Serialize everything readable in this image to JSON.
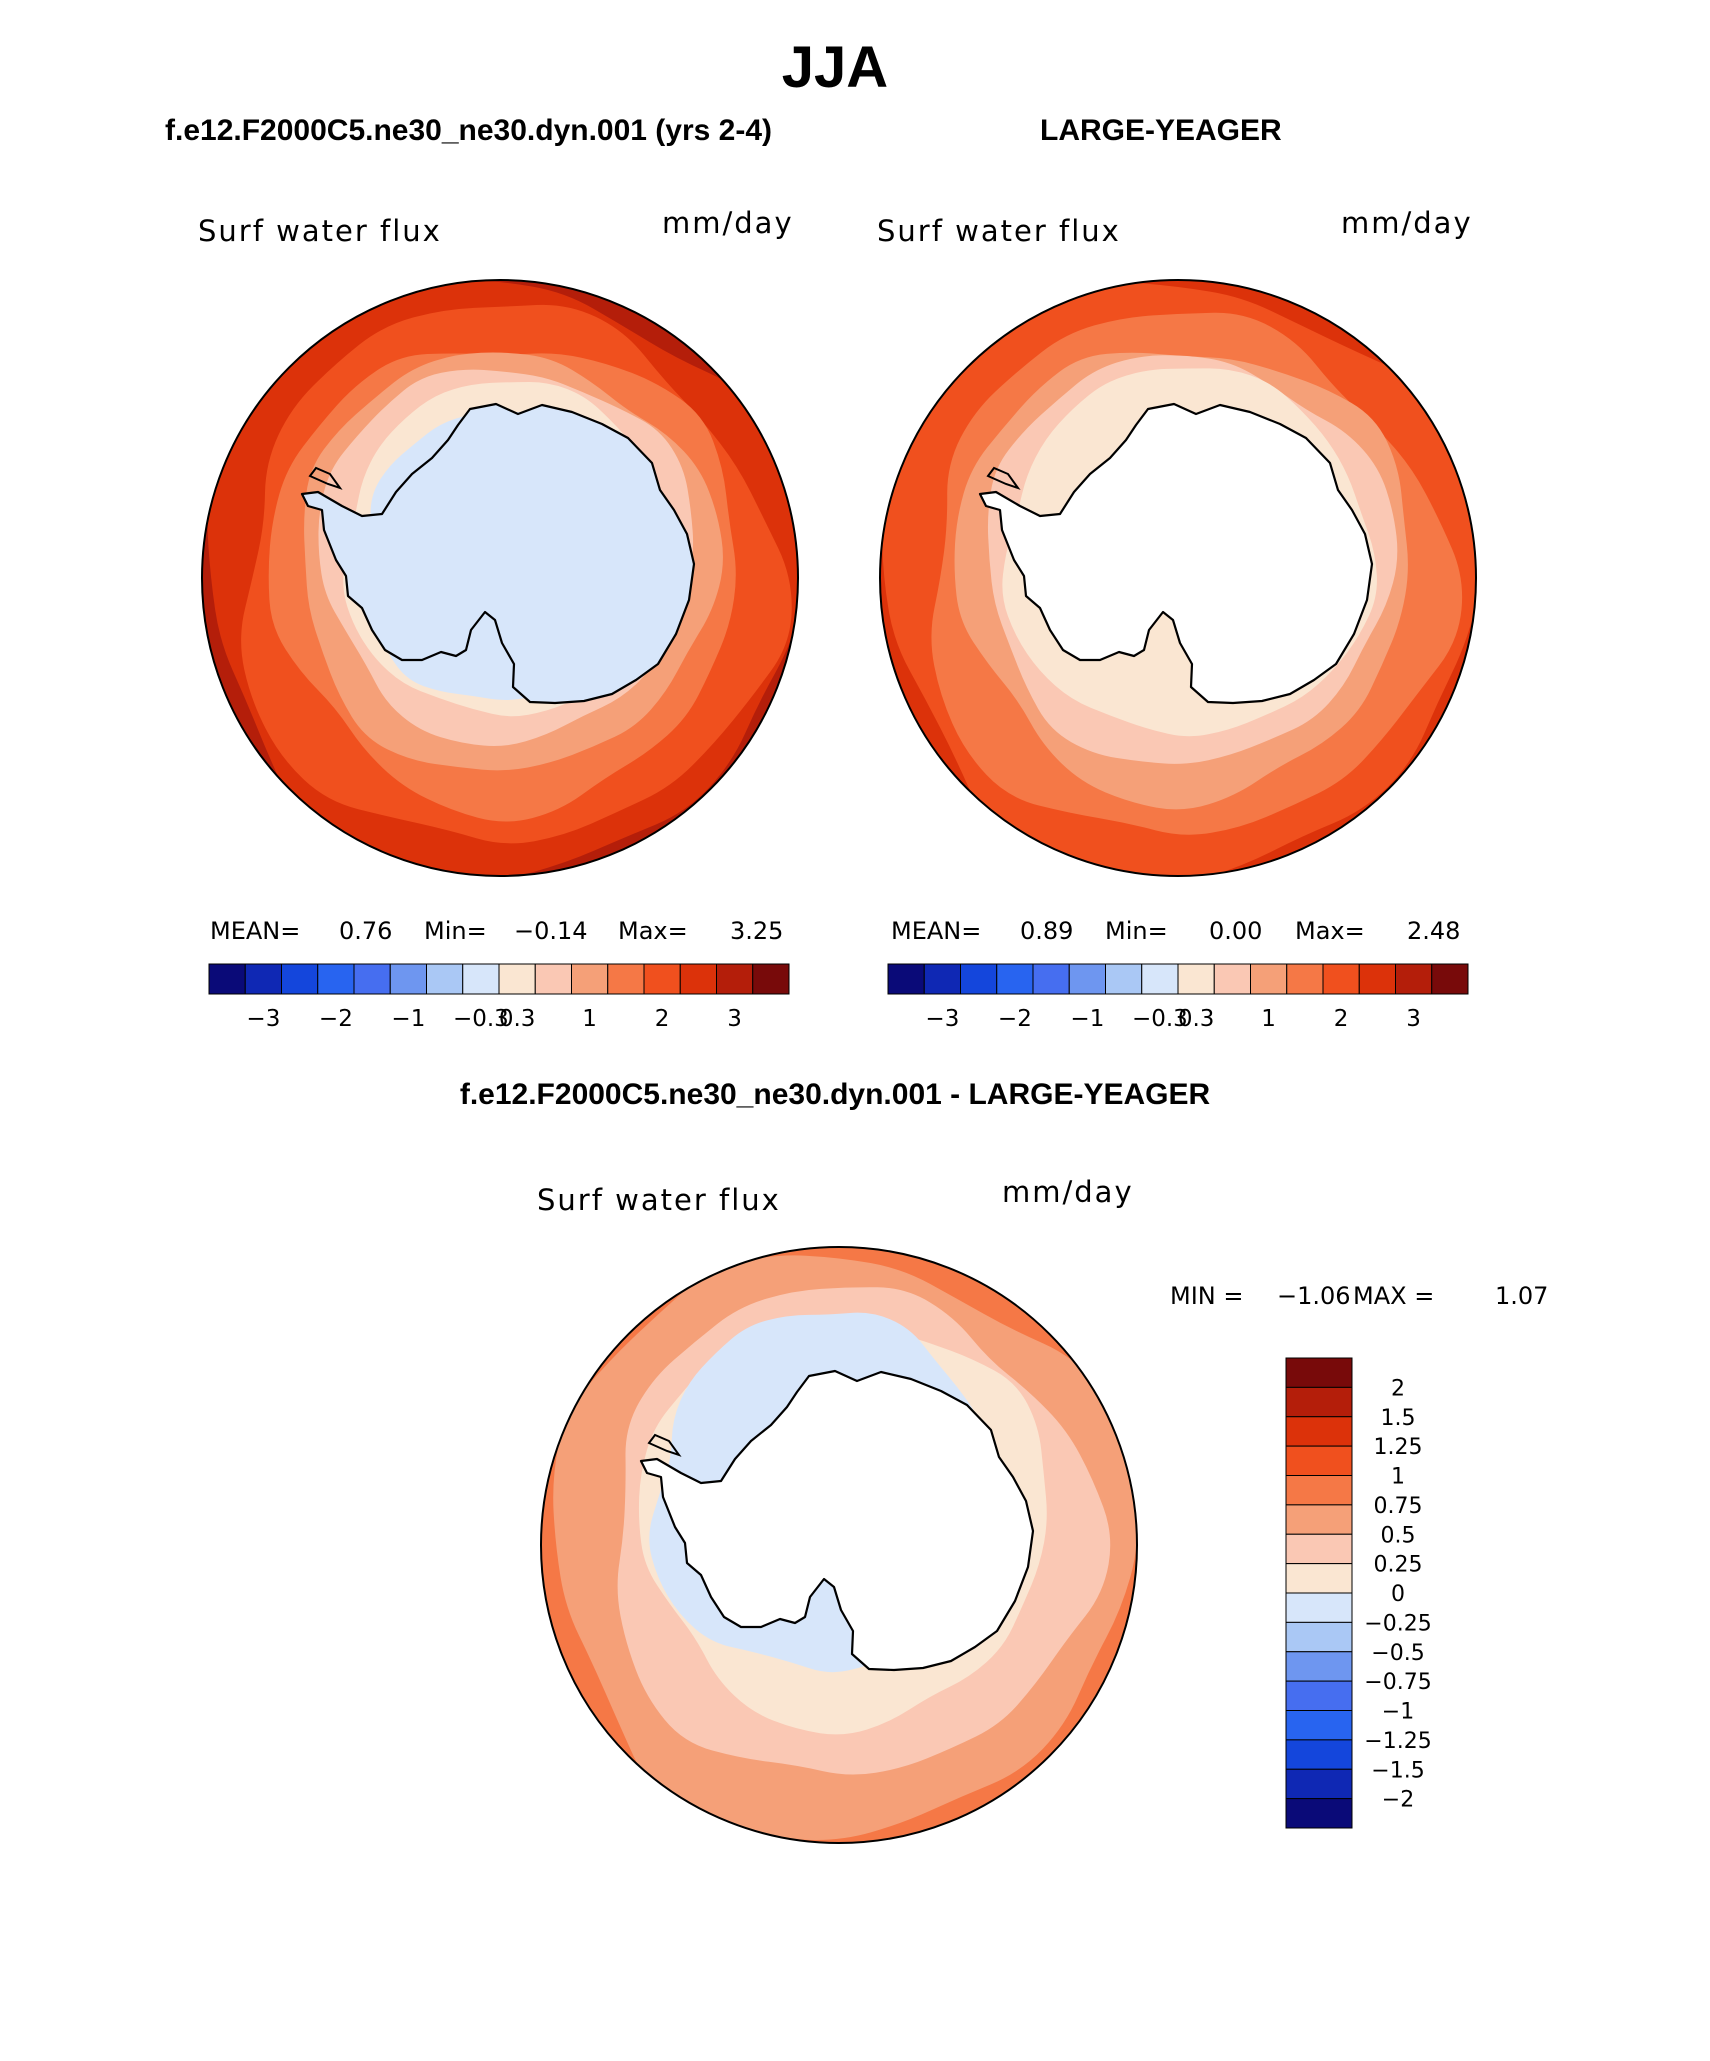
{
  "page": {
    "title": "JJA"
  },
  "panels": [
    {
      "id": "model",
      "header": "f.e12.F2000C5.ne30_ne30.dyn.001 (yrs 2-4)",
      "variable": "Surf water flux",
      "units": "mm/day",
      "stats": {
        "mean_label": "MEAN=",
        "mean": "0.76",
        "min_label": "Min=",
        "min": "−0.14",
        "max_label": "Max=",
        "max": "3.25"
      }
    },
    {
      "id": "obs",
      "header": "LARGE-YEAGER",
      "variable": "Surf water flux",
      "units": "mm/day",
      "stats": {
        "mean_label": "MEAN=",
        "mean": "0.89",
        "min_label": "Min=",
        "min": "0.00",
        "max_label": "Max=",
        "max": "2.48"
      }
    },
    {
      "id": "diff",
      "header": "f.e12.F2000C5.ne30_ne30.dyn.001 - LARGE-YEAGER",
      "variable": "Surf water flux",
      "units": "mm/day",
      "stats": {
        "min_label": "MIN =",
        "min": "−1.06",
        "max_label": "MAX =",
        "max": "1.07"
      }
    }
  ],
  "chart_data": [
    {
      "type": "heatmap",
      "projection": "south polar stereographic",
      "title": "f.e12.F2000C5.ne30_ne30.dyn.001 (yrs 2-4)",
      "variable": "Surf water flux",
      "units": "mm/day",
      "mean": 0.76,
      "min": -0.14,
      "max": 3.25,
      "colorbar": {
        "orientation": "horizontal",
        "levels": [
          -3,
          -2,
          -1,
          -0.3,
          0.3,
          1,
          2,
          3
        ],
        "tick_labels": [
          "−3",
          "−2",
          "−1",
          "−0.3",
          "0.3",
          "1",
          "2",
          "3"
        ],
        "colors": [
          "#0a0a78",
          "#0f28b4",
          "#1446dc",
          "#2864f0",
          "#466ef0",
          "#6e96f0",
          "#aac8f5",
          "#d7e6fa",
          "#fae6d2",
          "#fac8b4",
          "#f5a078",
          "#f57846",
          "#f0501e",
          "#dc320a",
          "#b41e0a",
          "#780a0a"
        ]
      }
    },
    {
      "type": "heatmap",
      "projection": "south polar stereographic",
      "title": "LARGE-YEAGER",
      "variable": "Surf water flux",
      "units": "mm/day",
      "mean": 0.89,
      "min": 0.0,
      "max": 2.48,
      "colorbar": {
        "orientation": "horizontal",
        "levels": [
          -3,
          -2,
          -1,
          -0.3,
          0.3,
          1,
          2,
          3
        ],
        "tick_labels": [
          "−3",
          "−2",
          "−1",
          "−0.3",
          "0.3",
          "1",
          "2",
          "3"
        ],
        "colors": [
          "#0a0a78",
          "#0f28b4",
          "#1446dc",
          "#2864f0",
          "#466ef0",
          "#6e96f0",
          "#aac8f5",
          "#d7e6fa",
          "#fae6d2",
          "#fac8b4",
          "#f5a078",
          "#f57846",
          "#f0501e",
          "#dc320a",
          "#b41e0a",
          "#780a0a"
        ]
      }
    },
    {
      "type": "heatmap",
      "projection": "south polar stereographic",
      "title": "f.e12.F2000C5.ne30_ne30.dyn.001 - LARGE-YEAGER",
      "variable": "Surf water flux",
      "units": "mm/day",
      "min": -1.06,
      "max": 1.07,
      "colorbar": {
        "orientation": "vertical",
        "levels": [
          2,
          1.5,
          1.25,
          1,
          0.75,
          0.5,
          0.25,
          0,
          -0.25,
          -0.5,
          -0.75,
          -1,
          -1.25,
          -1.5,
          -2
        ],
        "tick_labels": [
          "2",
          "1.5",
          "1.25",
          "1",
          "0.75",
          "0.5",
          "0.25",
          "0",
          "−0.25",
          "−0.5",
          "−0.75",
          "−1",
          "−1.25",
          "−1.5",
          "−2"
        ],
        "colors": [
          "#780a0a",
          "#b41e0a",
          "#dc320a",
          "#f0501e",
          "#f57846",
          "#f5a078",
          "#fac8b4",
          "#fae6d2",
          "#d7e6fa",
          "#aac8f5",
          "#6e96f0",
          "#466ef0",
          "#2864f0",
          "#1446dc",
          "#0f28b4",
          "#0a0a78"
        ]
      }
    }
  ]
}
